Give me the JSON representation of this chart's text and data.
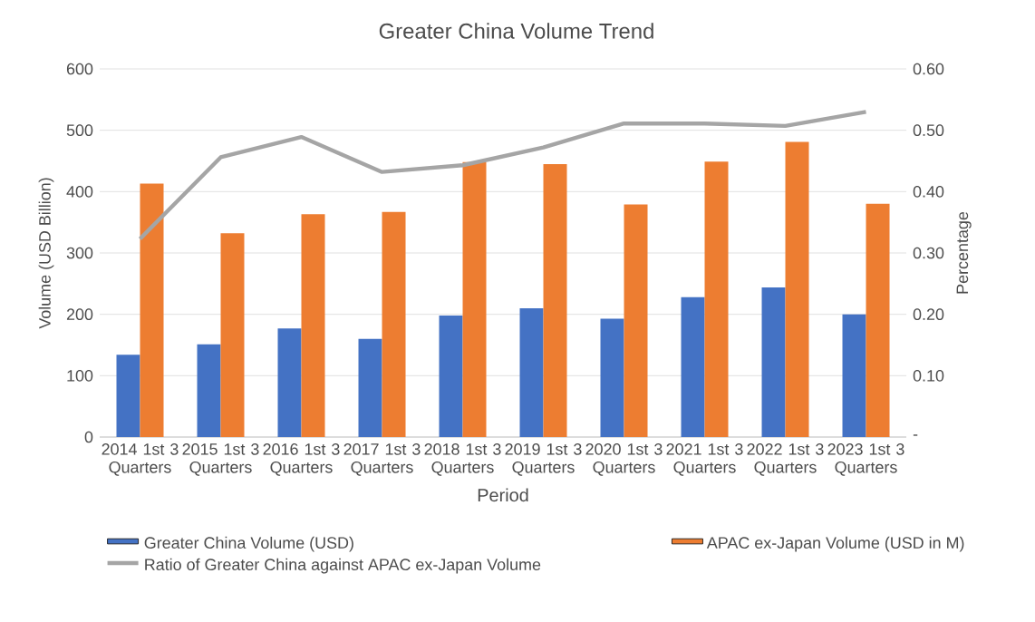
{
  "chart_data": {
    "type": "bar",
    "title": "Greater China Volume Trend",
    "xlabel": "Period",
    "ylabel": "Volume (USD Billion)",
    "y2label": "Percentage",
    "categories": [
      "2014 1st 3 Quarters",
      "2015 1st 3 Quarters",
      "2016 1st 3 Quarters",
      "2017 1st 3 Quarters",
      "2018 1st 3 Quarters",
      "2019 1st 3 Quarters",
      "2020 1st 3 Quarters",
      "2021 1st 3 Quarters",
      "2022 1st 3 Quarters",
      "2023 1st 3 Quarters"
    ],
    "series": [
      {
        "name": "Greater China Volume (USD)",
        "color": "#4472c4",
        "values": [
          134,
          151,
          177,
          160,
          198,
          210,
          193,
          228,
          244,
          200
        ]
      },
      {
        "name": "APAC ex-Japan Volume (USD in M)",
        "color": "#ed7d31",
        "values": [
          413,
          332,
          363,
          367,
          448,
          445,
          379,
          449,
          481,
          380
        ]
      },
      {
        "name": "Ratio of Greater China against APAC ex-Japan Volume",
        "color": "#a5a5a5",
        "type": "line",
        "axis": "y2",
        "values": [
          0.323,
          0.456,
          0.489,
          0.432,
          0.443,
          0.472,
          0.511,
          0.511,
          0.507,
          0.53
        ]
      }
    ],
    "ylim": [
      0,
      600
    ],
    "yticks": [
      0,
      100,
      200,
      300,
      400,
      500,
      600
    ],
    "y2lim": [
      0,
      0.6
    ],
    "y2ticks": [
      {
        "value": 0,
        "label": "-"
      },
      {
        "value": 0.1,
        "label": "0.10"
      },
      {
        "value": 0.2,
        "label": "0.20"
      },
      {
        "value": 0.3,
        "label": "0.30"
      },
      {
        "value": 0.4,
        "label": "0.40"
      },
      {
        "value": 0.5,
        "label": "0.50"
      },
      {
        "value": 0.6,
        "label": "0.60"
      }
    ],
    "grid": "y",
    "legend": "bottom"
  }
}
